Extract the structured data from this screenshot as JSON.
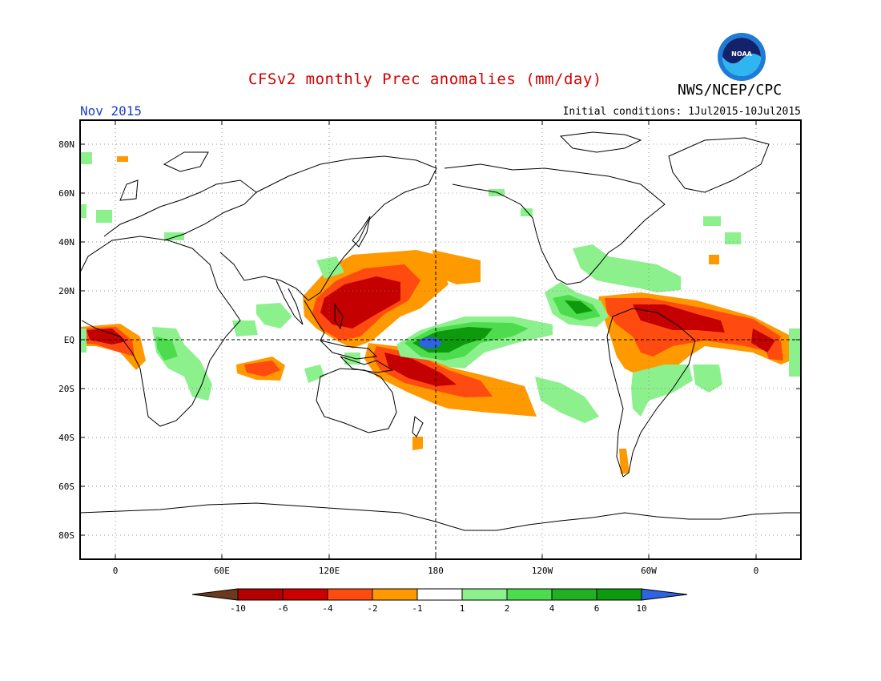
{
  "header": {
    "title": "CFSv2 monthly Prec anomalies (mm/day)",
    "organization": "NWS/NCEP/CPC",
    "logo_text": "NOAA",
    "month": "Nov 2015",
    "initial_conditions": "Initial conditions: 1Jul2015-10Jul2015"
  },
  "map": {
    "projection": "equirectangular",
    "lon_labels": [
      "0",
      "60E",
      "120E",
      "180",
      "120W",
      "60W",
      "0"
    ],
    "lat_labels": [
      "80N",
      "60N",
      "40N",
      "20N",
      "EQ",
      "20S",
      "40S",
      "60S",
      "80S"
    ],
    "reference_lines": [
      "EQ",
      "180"
    ],
    "grid": "dotted"
  },
  "colorbar": {
    "tick_labels": [
      "-10",
      "-6",
      "-4",
      "-2",
      "-1",
      "1",
      "2",
      "4",
      "6",
      "10"
    ],
    "colors": [
      "#6b3a1e",
      "#b30000",
      "#cc0000",
      "#ff4a10",
      "#ff9900",
      "#ffffff",
      "#8cf08c",
      "#4ddc4d",
      "#22b022",
      "#0d9a0d",
      "#2e64e0"
    ],
    "units": "mm/day"
  },
  "colors": {
    "title": "#d40000",
    "month": "#1a3fd0",
    "dry_strong": "#c40000",
    "dry": "#ff4a10",
    "dry_light": "#ff9900",
    "wet_light": "#8cf08c",
    "wet": "#4ddc4d",
    "wet_strong": "#0d9a0d",
    "wet_extreme": "#2e64e0"
  }
}
